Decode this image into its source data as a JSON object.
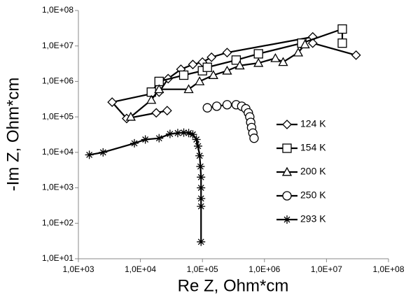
{
  "chart_data": {
    "type": "line",
    "x_label": "Re Z, Ohm*cm",
    "y_label": "-Im Z, Ohm*cm",
    "xscale": "log",
    "yscale": "log",
    "grid": false,
    "legend": "right",
    "xlim": [
      1000,
      100000000
    ],
    "xticks": [
      {
        "value": 1000,
        "label": "1,0E+03"
      },
      {
        "value": 10000,
        "label": "1,0E+04"
      },
      {
        "value": 100000,
        "label": "1,0E+05"
      },
      {
        "value": 1000000,
        "label": "1,0E+06"
      },
      {
        "value": 10000000,
        "label": "1,0E+07"
      },
      {
        "value": 100000000,
        "label": "1,0E+08"
      }
    ],
    "ylim": [
      10,
      100000000
    ],
    "yticks": [
      {
        "value": 10,
        "label": "1,0E+01"
      },
      {
        "value": 100,
        "label": "1,0E+02"
      },
      {
        "value": 1000,
        "label": "1,0E+03"
      },
      {
        "value": 10000,
        "label": "1,0E+04"
      },
      {
        "value": 100000,
        "label": "1,0E+05"
      },
      {
        "value": 1000000,
        "label": "1,0E+06"
      },
      {
        "value": 10000000,
        "label": "1,0E+07"
      },
      {
        "value": 100000000,
        "label": "1,0E+08"
      }
    ],
    "series": [
      {
        "name": "124 K",
        "color": "#000000",
        "marker": "diamond",
        "x": [
          27000,
          18000,
          6000,
          3500,
          20000,
          28000,
          45000,
          70000,
          100000,
          140000,
          250000,
          6000000,
          6000000,
          30000000
        ],
        "y": [
          150000,
          130000,
          90000,
          260000,
          500000,
          1200000,
          2200000,
          3000000,
          3500000,
          4800000,
          6500000,
          18000000,
          12000000,
          5500000
        ]
      },
      {
        "name": "154 K",
        "color": "#000000",
        "marker": "square",
        "x": [
          15000,
          20000,
          50000,
          100000,
          120000,
          350000,
          800000,
          4000000,
          18000000,
          18000000
        ],
        "y": [
          500000,
          1000000,
          1500000,
          2000000,
          2500000,
          4000000,
          6000000,
          12000000,
          30000000,
          12000000
        ]
      },
      {
        "name": "200 K",
        "color": "#000000",
        "marker": "triangle",
        "x": [
          7000,
          15000,
          20000,
          60000,
          90000,
          150000,
          250000,
          400000,
          800000,
          1500000,
          2000000,
          3500000,
          4500000
        ],
        "y": [
          100000,
          300000,
          600000,
          600000,
          1000000,
          1500000,
          2000000,
          2800000,
          3300000,
          4500000,
          3500000,
          6500000,
          11000000
        ]
      },
      {
        "name": "250 K",
        "color": "#000000",
        "marker": "circle",
        "x": [
          120000,
          170000,
          250000,
          350000,
          430000,
          500000,
          550000,
          580000,
          600000,
          620000,
          650000,
          680000
        ],
        "y": [
          180000,
          200000,
          220000,
          220000,
          200000,
          170000,
          130000,
          100000,
          70000,
          50000,
          35000,
          25000
        ]
      },
      {
        "name": "293 K",
        "color": "#000000",
        "marker": "star",
        "x": [
          1500,
          2500,
          8000,
          12000,
          20000,
          30000,
          40000,
          50000,
          60000,
          70000,
          80000,
          85000,
          90000,
          93000,
          95000,
          95000,
          95000,
          95000,
          95000
        ],
        "y": [
          8500,
          10000,
          18000,
          23000,
          25000,
          33000,
          35000,
          36000,
          35000,
          32000,
          23000,
          15000,
          8000,
          4000,
          2000,
          1000,
          500,
          300,
          30
        ]
      }
    ]
  }
}
